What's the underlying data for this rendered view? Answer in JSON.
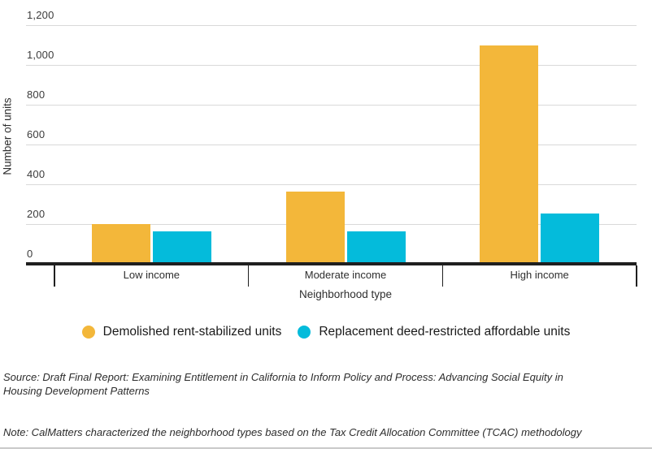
{
  "chart_data": {
    "type": "bar",
    "title": "",
    "categories": [
      "Low income",
      "Moderate income",
      "High income"
    ],
    "series": [
      {
        "name": "Demolished rent-stabilized units",
        "color": "#F3B73A",
        "values": [
          190,
          355,
          1090
        ]
      },
      {
        "name": "Replacement deed-restricted affordable units",
        "color": "#04BBDB",
        "values": [
          155,
          155,
          245
        ]
      }
    ],
    "xlabel": "Neighborhood type",
    "ylabel": "Number of units",
    "ylim": [
      0,
      1200
    ],
    "ytick_values": [
      0,
      200,
      400,
      600,
      800,
      1000,
      1200
    ],
    "ytick_labels": [
      "0",
      "200",
      "400",
      "600",
      "800",
      "1,000",
      "1,200"
    ],
    "grid": true,
    "legend_position": "bottom-center"
  },
  "footer": {
    "source": "Source: Draft Final Report: Examining Entitlement in California to Inform Policy and Process: Advancing Social Equity in Housing Development Patterns",
    "note": "Note: CalMatters characterized the neighborhood types based on the Tax Credit Allocation Committee (TCAC) methodology"
  },
  "colors": {
    "axis": "#1f1f1f",
    "gridline": "#d9d9d9",
    "tick_text": "#3b3b3b",
    "series_yellow": "#F3B73A",
    "series_cyan": "#04BBDB",
    "divider": "#c9c9c9"
  }
}
